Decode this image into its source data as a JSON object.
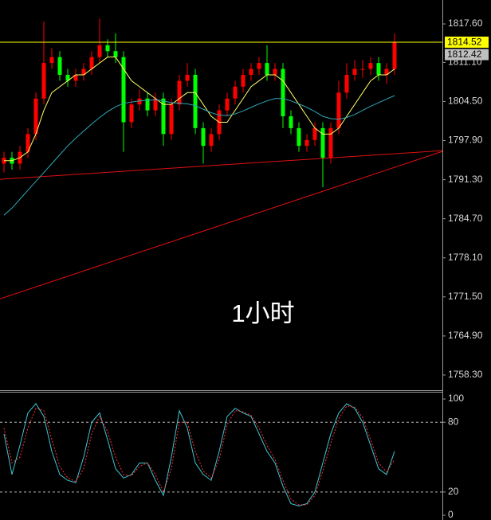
{
  "chart_data": [
    {
      "type": "candlestick",
      "annotation": "1小时",
      "open": [
        1794,
        1795,
        1794,
        1796,
        1799,
        1805,
        1811,
        1812,
        1809,
        1808,
        1809,
        1810,
        1812,
        1814,
        1813,
        1812,
        1801,
        1804,
        1805,
        1803,
        1805,
        1799,
        1804,
        1808,
        1809,
        1800,
        1797,
        1799,
        1803,
        1805,
        1807,
        1809,
        1810,
        1811,
        1809,
        1810,
        1802,
        1800,
        1797,
        1798,
        1800,
        1795,
        1800,
        1806,
        1809,
        1810,
        1810,
        1811,
        1809,
        1810
      ],
      "high": [
        1796,
        1796,
        1797,
        1800,
        1806,
        1818,
        1813.5,
        1813,
        1810,
        1810,
        1811,
        1813,
        1818.5,
        1815,
        1816,
        1813,
        1805,
        1806.5,
        1806,
        1806,
        1806,
        1805,
        1809,
        1811,
        1810,
        1801,
        1800,
        1804,
        1806,
        1808,
        1810,
        1811,
        1812,
        1814,
        1811,
        1811,
        1803,
        1801,
        1799,
        1801,
        1801,
        1801,
        1808,
        1811,
        1811.5,
        1811.5,
        1812,
        1812,
        1811,
        1816
      ],
      "low": [
        1792.5,
        1793,
        1793,
        1795,
        1798,
        1804,
        1810,
        1808,
        1807,
        1807,
        1808,
        1809,
        1811,
        1812,
        1811,
        1796,
        1800,
        1803,
        1802,
        1802,
        1797,
        1798,
        1803,
        1807,
        1799,
        1794,
        1796,
        1798,
        1802,
        1804,
        1806,
        1808,
        1809,
        1808,
        1808,
        1800,
        1799,
        1796,
        1796,
        1797,
        1790,
        1794,
        1799,
        1805,
        1808,
        1808.5,
        1809,
        1808,
        1807.5,
        1809
      ],
      "close": [
        1795,
        1794,
        1796,
        1799,
        1805,
        1811,
        1812,
        1809,
        1808,
        1809,
        1810,
        1812,
        1814,
        1813,
        1812,
        1801,
        1804,
        1805,
        1803,
        1805,
        1799,
        1804,
        1808,
        1809,
        1800,
        1797,
        1799,
        1803,
        1805,
        1807,
        1809,
        1810,
        1811,
        1809,
        1810,
        1802,
        1800,
        1797,
        1798,
        1800,
        1795,
        1800,
        1806,
        1809,
        1810,
        1810,
        1811,
        1809,
        1810,
        1814.5
      ],
      "up_color": "#ff0000",
      "down_color": "#00ff00",
      "series": [
        {
          "color": "#ffff66",
          "values": [
            1794.5,
            1794.5,
            1795,
            1796,
            1799,
            1803,
            1806,
            1807,
            1808,
            1809,
            1809,
            1810,
            1811,
            1812,
            1812,
            1810,
            1808,
            1807,
            1806,
            1805,
            1804,
            1804,
            1805,
            1806,
            1806,
            1804,
            1802,
            1801,
            1801,
            1803,
            1805,
            1807,
            1808,
            1809,
            1809,
            1808,
            1806,
            1804,
            1802,
            1800,
            1799,
            1799,
            1800,
            1802,
            1804,
            1806,
            1808,
            1809,
            1809,
            1810
          ]
        },
        {
          "color": "#2fa7b8",
          "values": [
            1785.3,
            1786.5,
            1788,
            1789.5,
            1791,
            1792.5,
            1794,
            1795.5,
            1797,
            1798.3,
            1799.5,
            1800.7,
            1801.8,
            1802.8,
            1803.6,
            1804.2,
            1804.4,
            1804.6,
            1804.7,
            1804.8,
            1804.6,
            1804.3,
            1804.2,
            1804.1,
            1803.8,
            1803.2,
            1802.6,
            1802.2,
            1802.1,
            1802.4,
            1802.9,
            1803.5,
            1804.1,
            1804.6,
            1805,
            1805,
            1804.6,
            1804.1,
            1803.5,
            1802.8,
            1802,
            1801.6,
            1801.5,
            1801.8,
            1802.3,
            1803,
            1803.7,
            1804.3,
            1804.9,
            1805.5
          ]
        }
      ],
      "trendlines": [
        {
          "color": "#e01010",
          "values": [
            1791.36,
            1796.2
          ]
        },
        {
          "color": "#e01010",
          "values": [
            1771.17,
            1796.07
          ]
        }
      ],
      "price_lines": [
        {
          "value": 1814.52,
          "color": "#ffff00",
          "line": true
        },
        {
          "value": 1812.42,
          "color": "#c0c0c0",
          "line": false
        }
      ],
      "ylim": [
        1755.74,
        1821.64
      ],
      "yticks": [
        {
          "value": 1817.6,
          "label": "1817.60"
        },
        {
          "value": 1811.1,
          "label": "1811.10"
        },
        {
          "value": 1804.5,
          "label": "1804.50"
        },
        {
          "value": 1797.9,
          "label": "1797.90"
        },
        {
          "value": 1791.3,
          "label": "1791.30"
        },
        {
          "value": 1784.7,
          "label": "1784.70"
        },
        {
          "value": 1778.1,
          "label": "1778.10"
        },
        {
          "value": 1771.5,
          "label": "1771.50"
        },
        {
          "value": 1764.9,
          "label": "1764.90"
        },
        {
          "value": 1758.3,
          "label": "1758.30"
        }
      ]
    },
    {
      "type": "stochastic",
      "series": [
        {
          "color": "#3fc6d6",
          "values": [
            70,
            35,
            60,
            88,
            96,
            85,
            55,
            35,
            30,
            28,
            50,
            80,
            88,
            65,
            40,
            32,
            35,
            45,
            45,
            30,
            17,
            50,
            90,
            75,
            45,
            35,
            30,
            55,
            85,
            92,
            88,
            85,
            70,
            55,
            45,
            25,
            10,
            8,
            10,
            20,
            45,
            70,
            88,
            96,
            92,
            80,
            60,
            40,
            35,
            55
          ]
        },
        {
          "color": "#ff3030",
          "dashed": true,
          "values": [
            75,
            45,
            50,
            75,
            92,
            90,
            65,
            42,
            32,
            29,
            40,
            70,
            85,
            72,
            50,
            35,
            34,
            42,
            45,
            35,
            20,
            40,
            80,
            80,
            55,
            38,
            32,
            48,
            78,
            90,
            89,
            86,
            75,
            60,
            48,
            30,
            14,
            9,
            9,
            17,
            38,
            62,
            83,
            94,
            93,
            84,
            65,
            45,
            37,
            48
          ]
        }
      ],
      "levels": [
        80,
        20
      ],
      "ylim": [
        -4.1,
        106.2
      ],
      "yticks": [
        100,
        80,
        20,
        0
      ]
    }
  ]
}
